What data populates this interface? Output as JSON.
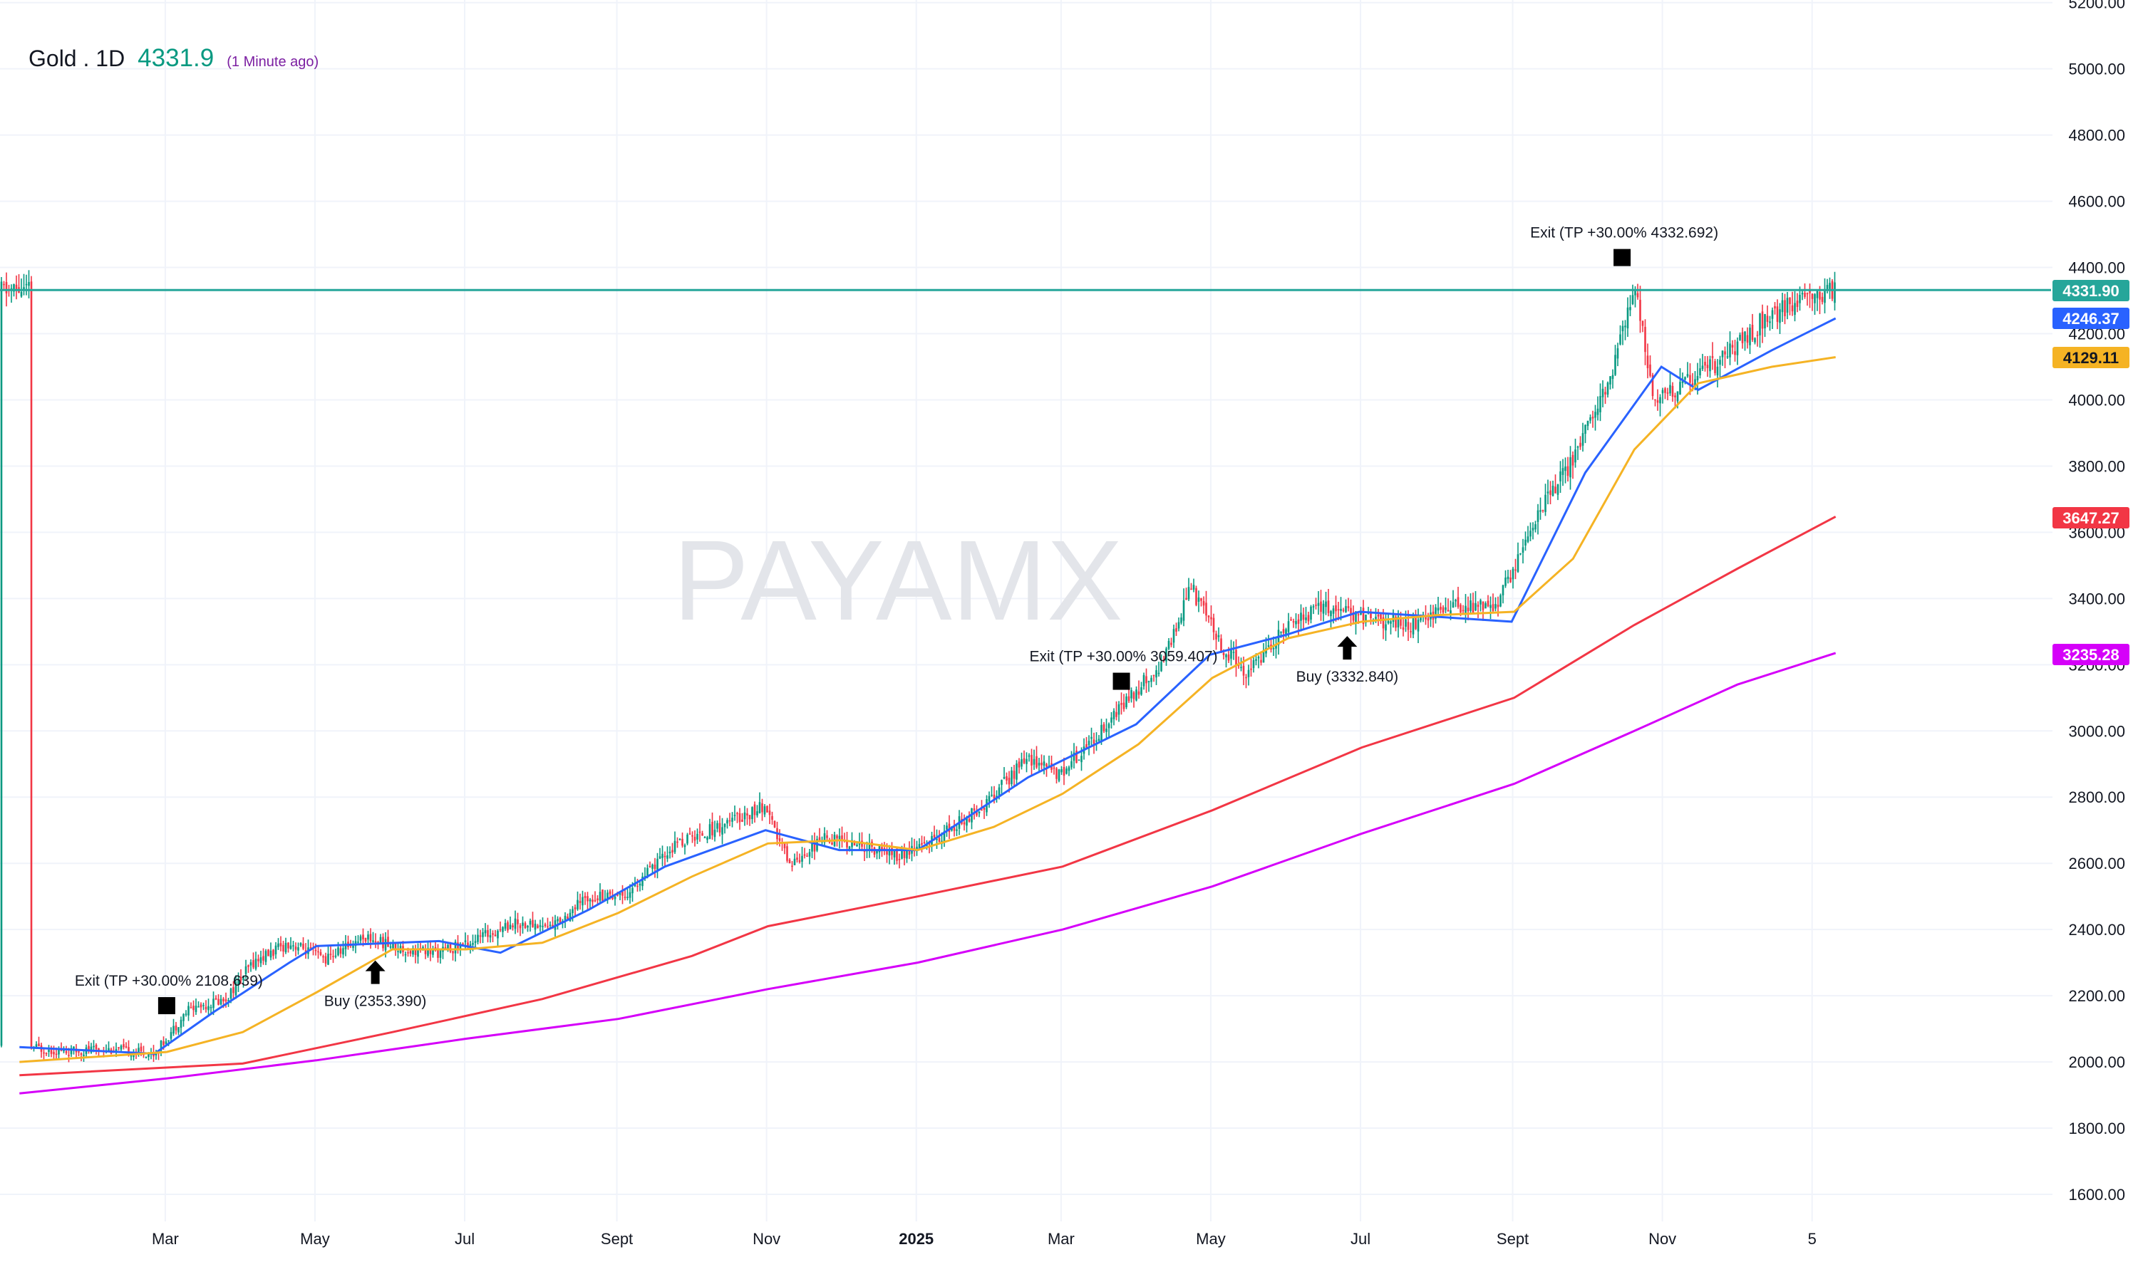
{
  "header": {
    "symbol": "Gold . 1D",
    "price": "4331.9",
    "updated": "(1 Minute ago)"
  },
  "watermark": "PAYAMX",
  "colors": {
    "grid": "#f0f3fa",
    "axis_text": "#131722",
    "last_price": "#26a69a",
    "ema_fast": "#2962ff",
    "ema_mid": "#f5b324",
    "ema_slow": "#f23645",
    "ema_slowest": "#d500f9",
    "candle_up": "#089981",
    "candle_down": "#f23645"
  },
  "chart_data": {
    "type": "line",
    "y_axis_ticks": [
      "1600.00",
      "1800.00",
      "2000.00",
      "2200.00",
      "2400.00",
      "2600.00",
      "2800.00",
      "3000.00",
      "3200.00",
      "3400.00",
      "3600.00",
      "3800.00",
      "4000.00",
      "4200.00",
      "4400.00",
      "4600.00",
      "4800.00",
      "5000.00",
      "5200.00"
    ],
    "ylim": [
      1540,
      5200
    ],
    "x_axis_labels": [
      {
        "label": "Mar",
        "month": "2024-03"
      },
      {
        "label": "May",
        "month": "2024-05"
      },
      {
        "label": "Jul",
        "month": "2024-07"
      },
      {
        "label": "Sept",
        "month": "2024-09"
      },
      {
        "label": "Nov",
        "month": "2024-11"
      },
      {
        "label": "2025",
        "month": "2025-01"
      },
      {
        "label": "Mar",
        "month": "2025-03"
      },
      {
        "label": "May",
        "month": "2025-05"
      },
      {
        "label": "Jul",
        "month": "2025-07"
      },
      {
        "label": "Sept",
        "month": "2025-09"
      },
      {
        "label": "Nov",
        "month": "2025-11"
      },
      {
        "label": "5",
        "month": "2026-01"
      }
    ],
    "price_path": [
      [
        "2024-01-05",
        2045
      ],
      [
        "2024-01-20",
        2030
      ],
      [
        "2024-02-05",
        2040
      ],
      [
        "2024-02-25",
        2025
      ],
      [
        "2024-03-10",
        2160
      ],
      [
        "2024-03-25",
        2190
      ],
      [
        "2024-04-05",
        2300
      ],
      [
        "2024-04-20",
        2360
      ],
      [
        "2024-05-05",
        2310
      ],
      [
        "2024-05-20",
        2380
      ],
      [
        "2024-06-05",
        2340
      ],
      [
        "2024-06-20",
        2330
      ],
      [
        "2024-07-05",
        2370
      ],
      [
        "2024-07-20",
        2420
      ],
      [
        "2024-08-05",
        2410
      ],
      [
        "2024-08-20",
        2500
      ],
      [
        "2024-09-05",
        2510
      ],
      [
        "2024-09-25",
        2660
      ],
      [
        "2024-10-15",
        2720
      ],
      [
        "2024-10-30",
        2770
      ],
      [
        "2024-11-10",
        2600
      ],
      [
        "2024-11-25",
        2680
      ],
      [
        "2024-12-10",
        2650
      ],
      [
        "2024-12-25",
        2620
      ],
      [
        "2025-01-10",
        2680
      ],
      [
        "2025-01-30",
        2790
      ],
      [
        "2025-02-15",
        2920
      ],
      [
        "2025-02-28",
        2870
      ],
      [
        "2025-03-15",
        2990
      ],
      [
        "2025-03-31",
        3120
      ],
      [
        "2025-04-12",
        3220
      ],
      [
        "2025-04-22",
        3440
      ],
      [
        "2025-05-05",
        3250
      ],
      [
        "2025-05-15",
        3180
      ],
      [
        "2025-05-30",
        3300
      ],
      [
        "2025-06-15",
        3380
      ],
      [
        "2025-07-01",
        3340
      ],
      [
        "2025-07-20",
        3320
      ],
      [
        "2025-08-05",
        3370
      ],
      [
        "2025-08-25",
        3380
      ],
      [
        "2025-09-10",
        3650
      ],
      [
        "2025-09-25",
        3820
      ],
      [
        "2025-10-10",
        4050
      ],
      [
        "2025-10-20",
        4350
      ],
      [
        "2025-10-28",
        4000
      ],
      [
        "2025-11-10",
        4050
      ],
      [
        "2025-11-25",
        4120
      ],
      [
        "2025-12-10",
        4230
      ],
      [
        "2025-12-25",
        4300
      ],
      [
        "2026-01-10",
        4331.9
      ]
    ],
    "series": [
      {
        "key": "ema_fast",
        "color": "#2962ff",
        "last_value": "4246.37",
        "points": [
          [
            "2024-01-01",
            2045
          ],
          [
            "2024-02-25",
            2025
          ],
          [
            "2024-03-20",
            2150
          ],
          [
            "2024-04-20",
            2300
          ],
          [
            "2024-05-01",
            2350
          ],
          [
            "2024-06-20",
            2365
          ],
          [
            "2024-07-15",
            2330
          ],
          [
            "2024-08-20",
            2460
          ],
          [
            "2024-09-20",
            2590
          ],
          [
            "2024-10-31",
            2700
          ],
          [
            "2024-11-30",
            2640
          ],
          [
            "2025-01-01",
            2640
          ],
          [
            "2025-02-15",
            2860
          ],
          [
            "2025-03-31",
            3020
          ],
          [
            "2025-04-30",
            3230
          ],
          [
            "2025-05-31",
            3290
          ],
          [
            "2025-06-30",
            3360
          ],
          [
            "2025-08-31",
            3330
          ],
          [
            "2025-09-30",
            3780
          ],
          [
            "2025-10-31",
            4100
          ],
          [
            "2025-11-15",
            4030
          ],
          [
            "2025-12-15",
            4150
          ],
          [
            "2026-01-10",
            4246.37
          ]
        ]
      },
      {
        "key": "ema_mid",
        "color": "#f5b324",
        "last_value": "4129.11",
        "points": [
          [
            "2024-01-01",
            2000
          ],
          [
            "2024-03-01",
            2030
          ],
          [
            "2024-04-01",
            2090
          ],
          [
            "2024-05-01",
            2210
          ],
          [
            "2024-06-01",
            2340
          ],
          [
            "2024-07-01",
            2340
          ],
          [
            "2024-08-01",
            2360
          ],
          [
            "2024-09-01",
            2450
          ],
          [
            "2024-10-01",
            2560
          ],
          [
            "2024-11-01",
            2660
          ],
          [
            "2024-12-01",
            2670
          ],
          [
            "2025-01-01",
            2640
          ],
          [
            "2025-02-01",
            2710
          ],
          [
            "2025-03-01",
            2810
          ],
          [
            "2025-04-01",
            2960
          ],
          [
            "2025-05-01",
            3160
          ],
          [
            "2025-06-01",
            3280
          ],
          [
            "2025-07-01",
            3330
          ],
          [
            "2025-08-01",
            3350
          ],
          [
            "2025-09-01",
            3360
          ],
          [
            "2025-09-25",
            3520
          ],
          [
            "2025-10-20",
            3850
          ],
          [
            "2025-11-15",
            4050
          ],
          [
            "2025-12-15",
            4100
          ],
          [
            "2026-01-10",
            4129.11
          ]
        ]
      },
      {
        "key": "ema_slow",
        "color": "#f23645",
        "last_value": "3647.27",
        "points": [
          [
            "2024-01-01",
            1960
          ],
          [
            "2024-04-01",
            1995
          ],
          [
            "2024-06-01",
            2090
          ],
          [
            "2024-08-01",
            2190
          ],
          [
            "2024-10-01",
            2320
          ],
          [
            "2024-11-01",
            2410
          ],
          [
            "2025-01-01",
            2500
          ],
          [
            "2025-03-01",
            2590
          ],
          [
            "2025-05-01",
            2760
          ],
          [
            "2025-07-01",
            2950
          ],
          [
            "2025-09-01",
            3100
          ],
          [
            "2025-10-20",
            3320
          ],
          [
            "2025-12-01",
            3490
          ],
          [
            "2026-01-10",
            3647.27
          ]
        ]
      },
      {
        "key": "ema_slowest",
        "color": "#d500f9",
        "last_value": "3235.28",
        "points": [
          [
            "2024-01-01",
            1905
          ],
          [
            "2024-03-01",
            1950
          ],
          [
            "2024-05-01",
            2005
          ],
          [
            "2024-07-01",
            2070
          ],
          [
            "2024-09-01",
            2130
          ],
          [
            "2024-11-01",
            2220
          ],
          [
            "2025-01-01",
            2300
          ],
          [
            "2025-03-01",
            2400
          ],
          [
            "2025-05-01",
            2530
          ],
          [
            "2025-07-01",
            2690
          ],
          [
            "2025-09-01",
            2840
          ],
          [
            "2025-10-20",
            3000
          ],
          [
            "2025-12-01",
            3140
          ],
          [
            "2026-01-10",
            3235.28
          ]
        ]
      }
    ],
    "last_price": {
      "value": "4331.90",
      "y": 4331.9
    },
    "annotations": [
      {
        "type": "exit",
        "text": "Exit (TP +30.00% 2108.639)",
        "date": "2024-03-01",
        "y": 2170
      },
      {
        "type": "buy",
        "text": "Buy (2353.390)",
        "date": "2024-05-25",
        "y": 2270
      },
      {
        "type": "exit",
        "text": "Exit (TP +30.00% 3059.407)",
        "date": "2025-03-25",
        "y": 3150
      },
      {
        "type": "buy",
        "text": "Buy (3332.840)",
        "date": "2025-06-25",
        "y": 3250
      },
      {
        "type": "exit",
        "text": "Exit (TP +30.00% 4332.692)",
        "date": "2025-10-15",
        "y": 4430
      }
    ]
  }
}
